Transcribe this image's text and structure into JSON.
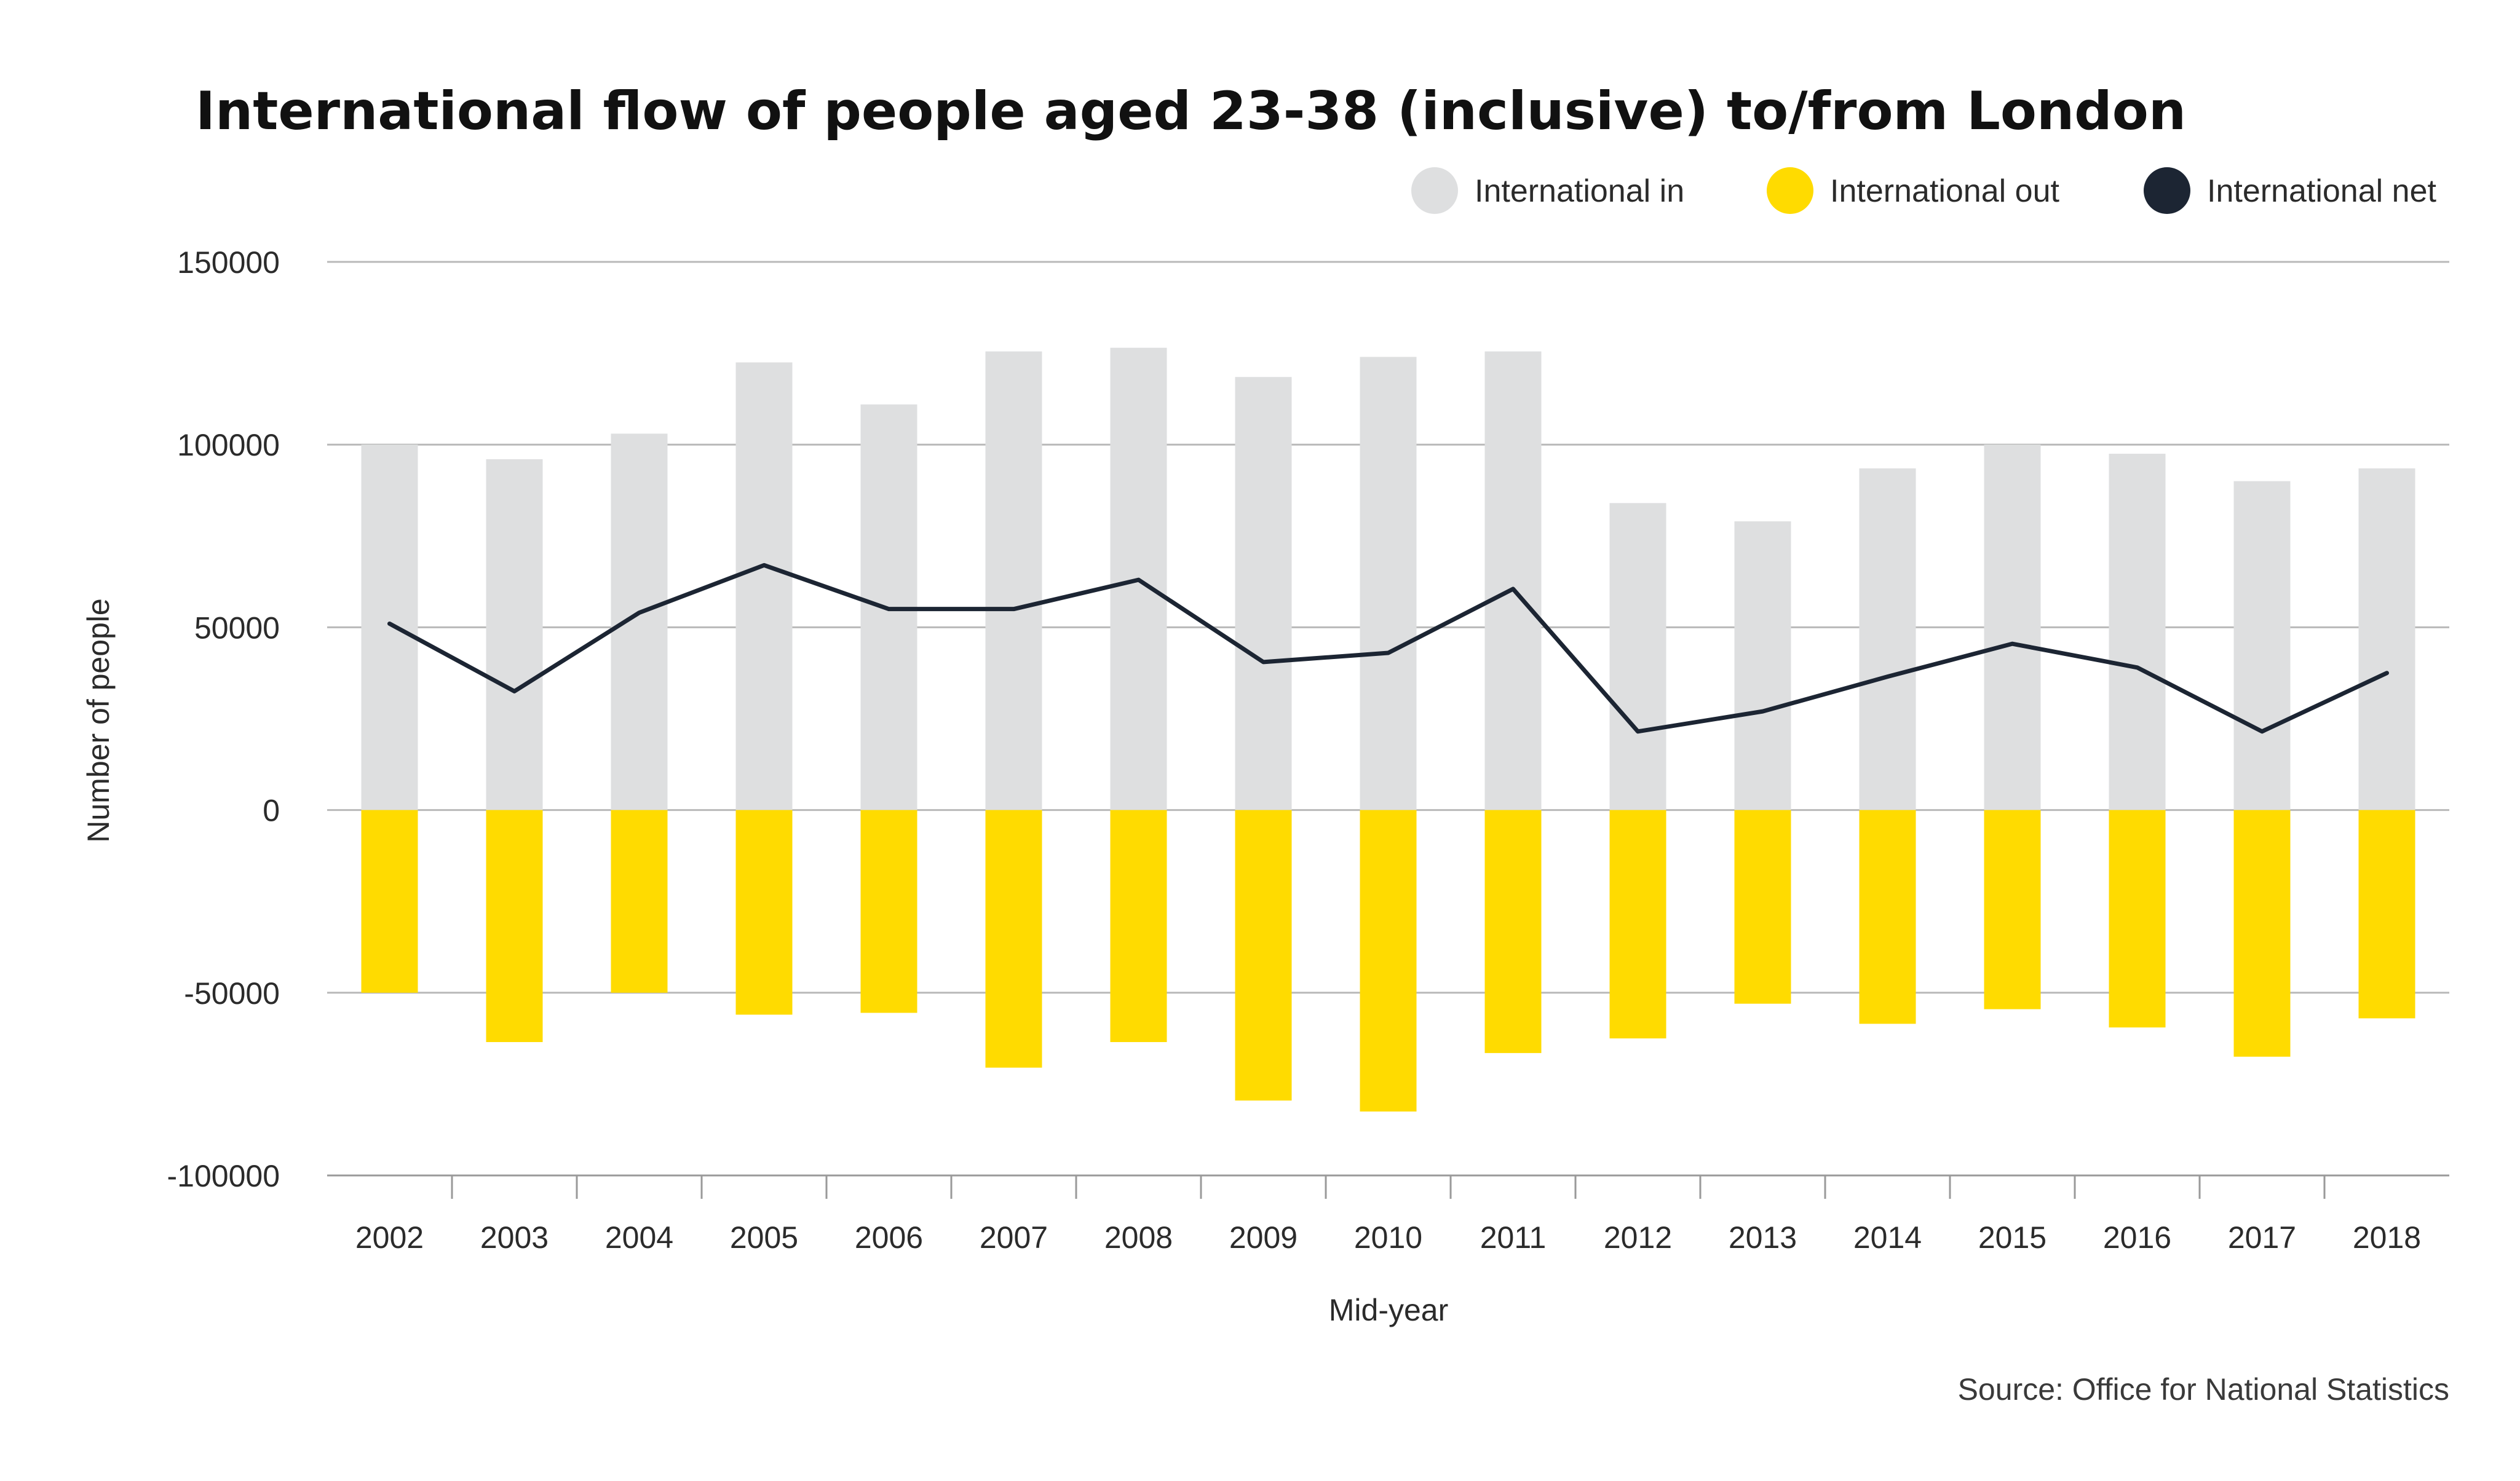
{
  "chart_data": {
    "type": "bar",
    "title": "International flow of people aged 23-38 (inclusive) to/from London",
    "xlabel": "Mid-year",
    "ylabel": "Number of people",
    "ylim": [
      -100000,
      150000
    ],
    "yticks": [
      150000,
      100000,
      50000,
      0,
      -50000,
      -100000
    ],
    "ytick_labels": [
      "150000",
      "100000",
      "50000",
      "0",
      "-50000",
      "-100000"
    ],
    "grid": true,
    "legend_position": "top-right",
    "categories": [
      "2002",
      "2003",
      "2004",
      "2005",
      "2006",
      "2007",
      "2008",
      "2009",
      "2010",
      "2011",
      "2012",
      "2013",
      "2014",
      "2015",
      "2016",
      "2017",
      "2018"
    ],
    "series": [
      {
        "name": "International in",
        "kind": "bar",
        "color": "#dedfe0",
        "values": [
          100000,
          96000,
          103000,
          122500,
          111000,
          125500,
          126500,
          118500,
          124000,
          125500,
          84000,
          79000,
          93500,
          100000,
          97500,
          90000,
          93500
        ]
      },
      {
        "name": "International out",
        "kind": "bar",
        "color": "#ffdb00",
        "values": [
          -50000,
          -63500,
          -50000,
          -56000,
          -55500,
          -70500,
          -63500,
          -79500,
          -82500,
          -66500,
          -62500,
          -53000,
          -58500,
          -54500,
          -59500,
          -67500,
          -57000
        ]
      },
      {
        "name": "International net",
        "kind": "line",
        "color": "#1c2533",
        "values": [
          51000,
          32500,
          54000,
          67000,
          55000,
          55000,
          63000,
          40500,
          43000,
          60500,
          21500,
          27000,
          36500,
          45500,
          39000,
          21500,
          37500
        ]
      }
    ],
    "source": "Source: Office for National Statistics"
  }
}
